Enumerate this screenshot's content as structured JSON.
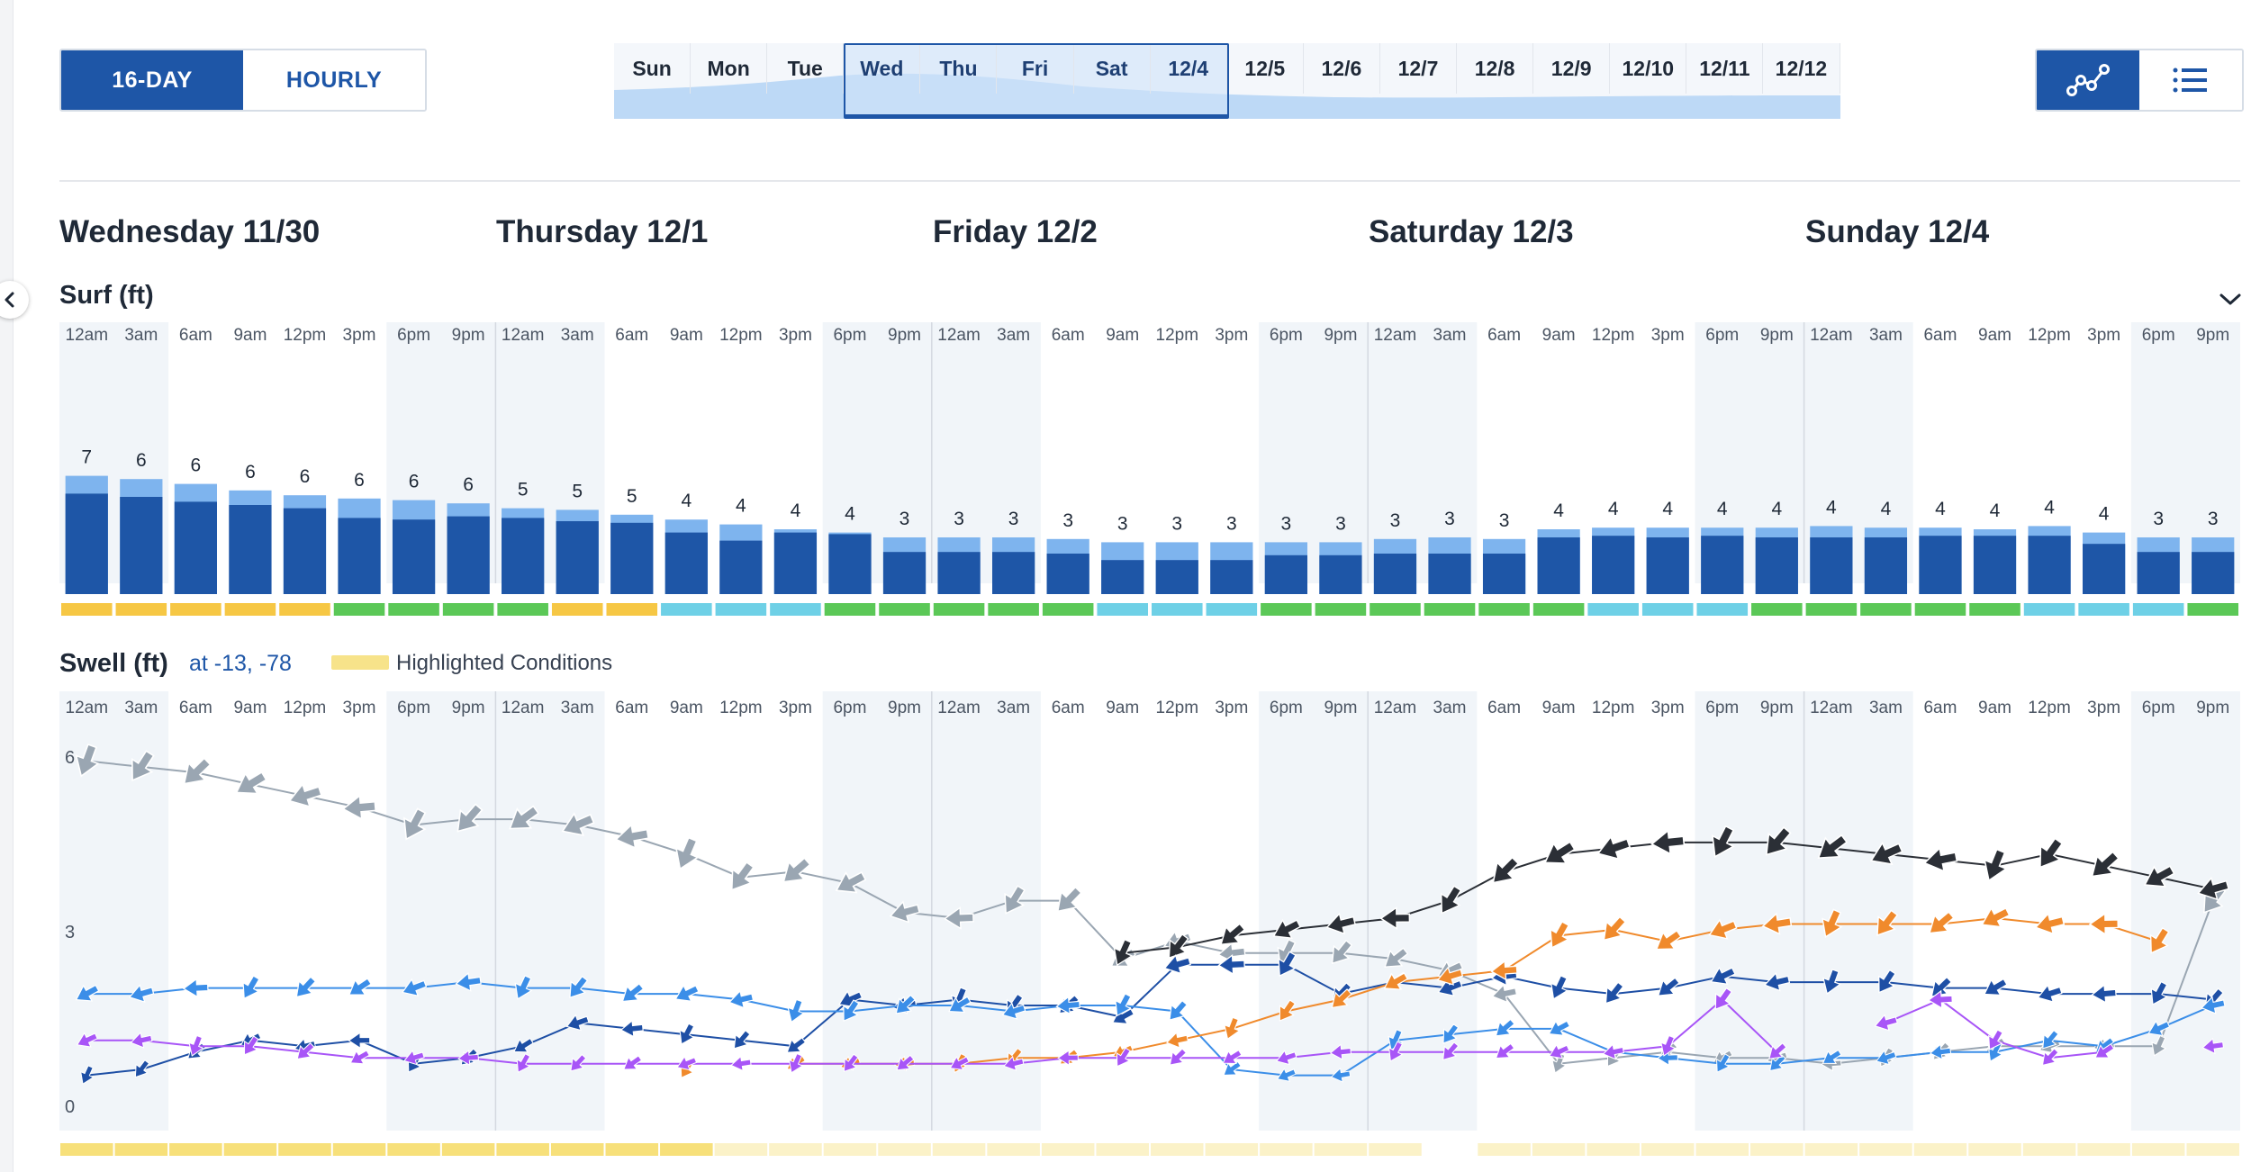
{
  "controls": {
    "view_toggle": [
      {
        "label": "16-DAY",
        "active": true
      },
      {
        "label": "HOURLY",
        "active": false
      }
    ],
    "chart_type": [
      {
        "icon": "graph-icon",
        "active": true
      },
      {
        "icon": "list-icon",
        "active": false
      }
    ]
  },
  "day_strip": {
    "days": [
      "Sun",
      "Mon",
      "Tue",
      "Wed",
      "Thu",
      "Fri",
      "Sat",
      "12/4",
      "12/5",
      "12/6",
      "12/7",
      "12/8",
      "12/9",
      "12/10",
      "12/11",
      "12/12"
    ],
    "selected": [
      3,
      4,
      5,
      6,
      7
    ]
  },
  "days": [
    "Wednesday 11/30",
    "Thursday 12/1",
    "Friday 12/2",
    "Saturday 12/3",
    "Sunday 12/4"
  ],
  "hour_labels": [
    "12am",
    "3am",
    "6am",
    "9am",
    "12pm",
    "3pm",
    "6pm",
    "9pm"
  ],
  "surf": {
    "title": "Surf (ft)"
  },
  "swell": {
    "title": "Swell (ft)",
    "location": "at -13, -78",
    "legend_label": "Highlighted Conditions"
  },
  "colors": {
    "accent": "#1e56a7",
    "bar_dark": "#1e56a7",
    "bar_light": "#7eb4ee",
    "night_band": "#f1f5f9",
    "cond_yellow": "#f6c744",
    "cond_green": "#5bc857",
    "cond_cyan": "#6ed0e6",
    "highlight_strong": "#f7e07a",
    "highlight_pale": "#fbf2c8"
  },
  "chart_data": [
    {
      "type": "bar",
      "title": "Surf (ft)",
      "values": [
        7,
        6,
        6,
        6,
        6,
        6,
        6,
        6,
        5,
        5,
        5,
        4,
        4,
        4,
        4,
        3,
        3,
        3,
        3,
        3,
        3,
        3,
        3,
        3,
        3,
        3,
        3,
        4,
        4,
        4,
        4,
        4,
        4,
        4,
        4,
        4,
        4,
        4,
        3,
        3
      ],
      "range_top": [
        7.3,
        7.1,
        6.8,
        6.4,
        6.1,
        5.9,
        5.8,
        5.6,
        5.3,
        5.2,
        4.9,
        4.6,
        4.3,
        4.0,
        3.8,
        3.5,
        3.5,
        3.5,
        3.4,
        3.2,
        3.2,
        3.2,
        3.2,
        3.2,
        3.4,
        3.5,
        3.4,
        4.0,
        4.1,
        4.1,
        4.1,
        4.1,
        4.2,
        4.1,
        4.1,
        4.0,
        4.2,
        3.8,
        3.5,
        3.5
      ],
      "range_bottom": [
        6.2,
        6.0,
        5.7,
        5.5,
        5.3,
        4.7,
        4.6,
        4.8,
        4.7,
        4.5,
        4.4,
        3.8,
        3.3,
        3.8,
        3.7,
        2.6,
        2.6,
        2.6,
        2.5,
        2.1,
        2.1,
        2.1,
        2.4,
        2.4,
        2.5,
        2.5,
        2.5,
        3.5,
        3.6,
        3.5,
        3.6,
        3.5,
        3.5,
        3.5,
        3.6,
        3.6,
        3.6,
        3.1,
        2.6,
        2.6
      ],
      "conditions": [
        "fair",
        "fair",
        "fair",
        "fair",
        "fair",
        "good",
        "good",
        "good",
        "good",
        "fair",
        "fair",
        "poor",
        "poor",
        "poor",
        "good",
        "good",
        "good",
        "good",
        "good",
        "poor",
        "poor",
        "poor",
        "good",
        "good",
        "good",
        "good",
        "good",
        "good",
        "poor",
        "poor",
        "poor",
        "good",
        "good",
        "good",
        "good",
        "good",
        "poor",
        "poor",
        "poor",
        "good"
      ]
    },
    {
      "type": "line",
      "title": "Swell (ft)",
      "ylim": [
        0,
        6
      ],
      "yticks": [
        0,
        3,
        6
      ],
      "series": [
        {
          "color": "#9aa6b2",
          "values": [
            5.7,
            5.6,
            5.5,
            5.3,
            5.1,
            4.9,
            4.6,
            4.7,
            4.7,
            4.6,
            4.4,
            4.1,
            3.7,
            3.8,
            3.6,
            3.1,
            3.0,
            3.3,
            3.3,
            2.3,
            2.6,
            2.4,
            2.4,
            2.4,
            2.3,
            2.1,
            1.7,
            0.5,
            0.6,
            0.7,
            0.6,
            0.6,
            0.5,
            0.6,
            0.7,
            0.8,
            0.8,
            0.8,
            0.8,
            3.3
          ]
        },
        {
          "color": "#2b2f36",
          "values": [
            null,
            null,
            null,
            null,
            null,
            null,
            null,
            null,
            null,
            null,
            null,
            null,
            null,
            null,
            null,
            null,
            null,
            null,
            null,
            2.4,
            2.5,
            2.7,
            2.8,
            2.9,
            3.0,
            3.3,
            3.8,
            4.1,
            4.2,
            4.3,
            4.3,
            4.3,
            4.2,
            4.1,
            4.0,
            3.9,
            4.1,
            3.9,
            3.7,
            3.5
          ]
        },
        {
          "color": "#1e4fa5",
          "values": [
            0.3,
            0.4,
            0.7,
            0.9,
            0.8,
            0.9,
            0.5,
            0.6,
            0.8,
            1.2,
            1.1,
            1.0,
            0.9,
            0.8,
            1.6,
            1.5,
            1.6,
            1.5,
            1.5,
            1.3,
            2.2,
            2.2,
            2.2,
            1.7,
            1.9,
            1.8,
            2.0,
            1.8,
            1.7,
            1.8,
            2.0,
            1.9,
            1.9,
            1.9,
            1.8,
            1.8,
            1.7,
            1.7,
            1.7,
            1.6
          ]
        },
        {
          "color": "#3b8ee8",
          "values": [
            1.7,
            1.7,
            1.8,
            1.8,
            1.8,
            1.8,
            1.8,
            1.9,
            1.8,
            1.8,
            1.7,
            1.7,
            1.6,
            1.4,
            1.4,
            1.5,
            1.5,
            1.4,
            1.5,
            1.5,
            1.4,
            0.4,
            0.3,
            0.3,
            0.9,
            1.0,
            1.1,
            1.1,
            0.7,
            0.6,
            0.5,
            0.5,
            0.6,
            0.6,
            0.7,
            0.7,
            0.9,
            0.8,
            1.1,
            1.5
          ]
        },
        {
          "color": "#f08a2c",
          "values": [
            null,
            null,
            null,
            null,
            null,
            null,
            null,
            null,
            null,
            null,
            null,
            0.4,
            null,
            0.5,
            0.5,
            0.5,
            0.5,
            0.6,
            0.6,
            0.7,
            0.9,
            1.1,
            1.4,
            1.6,
            1.9,
            2.0,
            2.1,
            2.7,
            2.8,
            2.6,
            2.8,
            2.9,
            2.9,
            2.9,
            2.9,
            3.0,
            2.9,
            2.9,
            2.6,
            null
          ]
        },
        {
          "color": "#a855f7",
          "values": [
            0.9,
            0.9,
            0.8,
            0.8,
            0.7,
            0.6,
            0.6,
            0.6,
            0.5,
            0.5,
            0.5,
            0.5,
            0.5,
            0.5,
            0.5,
            0.5,
            0.5,
            0.5,
            0.6,
            0.6,
            0.6,
            0.6,
            0.6,
            0.7,
            0.7,
            0.7,
            0.7,
            0.7,
            0.7,
            0.8,
            1.6,
            0.7,
            null,
            1.2,
            1.6,
            0.9,
            0.6,
            0.7,
            null,
            0.8
          ]
        }
      ],
      "highlight": [
        "strong",
        "strong",
        "strong",
        "strong",
        "strong",
        "strong",
        "strong",
        "strong",
        "strong",
        "strong",
        "strong",
        "strong",
        "pale",
        "pale",
        "pale",
        "pale",
        "pale",
        "pale",
        "pale",
        "pale",
        "pale",
        "pale",
        "pale",
        "pale",
        "pale",
        "none",
        "pale",
        "pale",
        "pale",
        "pale",
        "pale",
        "pale",
        "pale",
        "pale",
        "pale",
        "pale",
        "pale",
        "pale",
        "pale",
        "pale"
      ]
    }
  ]
}
